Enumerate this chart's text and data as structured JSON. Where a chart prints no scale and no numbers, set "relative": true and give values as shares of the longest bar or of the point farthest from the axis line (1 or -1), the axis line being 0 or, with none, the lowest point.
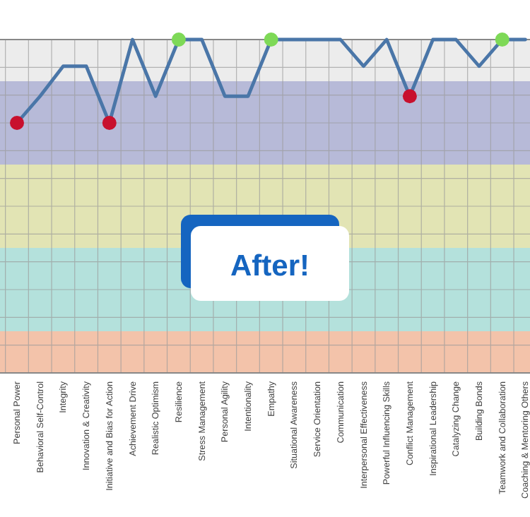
{
  "chart_data": {
    "type": "line",
    "relative": true,
    "grid": true,
    "line_style": "solid",
    "categories": [
      "Personal Power",
      "Behavioral Self-Control",
      "Integrity",
      "Innovation & Creativity",
      "Initiative and Bias for Action",
      "Achievement Drive",
      "Realistic Optimism",
      "Resilience",
      "Stress Management",
      "Personal Agility",
      "Intentionality",
      "Empathy",
      "Situational Awareness",
      "Service Orientation",
      "Communication",
      "Interpersonal Effectiveness",
      "Powerful Influencing Skills",
      "Conflict Management",
      "Inspirational Leadership",
      "Catalyzing Change",
      "Building Bonds",
      "Teamwork and Collaboration",
      "Coaching & Mentoring Others"
    ],
    "series": [
      {
        "color": "#4a76a8",
        "marker": "none",
        "values": [
          0.75,
          0.83,
          0.92,
          0.92,
          0.75,
          1,
          0.83,
          1,
          1,
          0.83,
          0.83,
          1,
          1,
          1,
          1,
          0.92,
          1,
          0.83,
          1,
          1,
          0.92,
          1,
          1
        ]
      },
      {
        "type": "scatter",
        "color": "#c8102e",
        "marker": "circle",
        "values": [
          0.75,
          null,
          null,
          null,
          0.75,
          null,
          null,
          null,
          null,
          null,
          null,
          null,
          null,
          null,
          null,
          null,
          null,
          0.83,
          null,
          null,
          null,
          null,
          null
        ]
      },
      {
        "type": "scatter",
        "color": "#7ed957",
        "marker": "circle",
        "values": [
          null,
          null,
          null,
          null,
          null,
          null,
          null,
          1,
          null,
          null,
          null,
          1,
          null,
          null,
          null,
          null,
          null,
          null,
          null,
          null,
          null,
          1,
          null
        ]
      }
    ],
    "bands": [
      {
        "axis": "y",
        "from": 0.875,
        "to": 1,
        "color": "#ececec"
      },
      {
        "axis": "y",
        "from": 0.625,
        "to": 0.875,
        "color": "#b7bad8"
      },
      {
        "axis": "y",
        "from": 0.375,
        "to": 0.625,
        "color": "#e2e4b4"
      },
      {
        "axis": "y",
        "from": 0.125,
        "to": 0.375,
        "color": "#b4e1dc"
      },
      {
        "axis": "y",
        "from": 0,
        "to": 0.125,
        "color": "#f3c3aa"
      }
    ],
    "annotations": [
      "After!"
    ]
  }
}
